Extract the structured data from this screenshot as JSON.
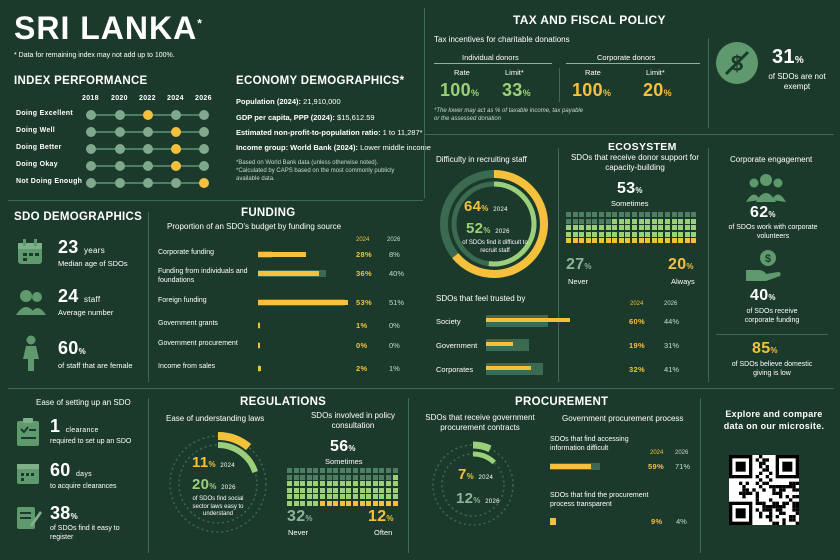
{
  "title": "SRI LANKA",
  "title_star": "*",
  "note": "* Data for remaining index may not add up to 100%.",
  "colors": {
    "bg": "#1c3a2b",
    "accent": "#f5c03c",
    "green": "#9ccf7a",
    "muted": "#7fa88c"
  },
  "index": {
    "heading": "INDEX PERFORMANCE",
    "years": [
      "2018",
      "2020",
      "2022",
      "2024",
      "2026"
    ],
    "rows": [
      "Doing Excellent",
      "Doing Well",
      "Doing Better",
      "Doing Okay",
      "Not Doing Enough"
    ],
    "highlight": [
      [
        2,
        0
      ],
      [
        3,
        1
      ],
      [
        3,
        2
      ],
      [
        3,
        3
      ],
      [
        4,
        4
      ]
    ]
  },
  "economy": {
    "heading": "ECONOMY DEMOGRAPHICS*",
    "pop_label": "Population (2024):",
    "pop_value": "21,910,000",
    "gdp_label": "GDP per capita, PPP (2024):",
    "gdp_value": "$15,612.59",
    "ratio_label": "Estimated non-profit-to-population ratio:",
    "ratio_value": "1 to 11,287*",
    "income_label": "Income group: World Bank (2024):",
    "income_value": "Lower middle income",
    "note1": "*Based on World Bank data (unless otherwise noted).",
    "note2": "*Calculated by CAPS based on the most commonly publicly available data."
  },
  "tax": {
    "heading": "TAX AND FISCAL POLICY",
    "sub": "Tax incentives for charitable donations",
    "indiv": "Individual donors",
    "corp": "Corporate donors",
    "rate": "Rate",
    "limit": "Limit*",
    "indiv_rate": "100",
    "indiv_limit": "33",
    "corp_rate": "100",
    "corp_limit": "20",
    "pct": "%",
    "note": "*The lower may act as % of taxable income, tax payable or the assessed donation",
    "exempt_value": "31",
    "exempt_label": "of SDOs are not exempt"
  },
  "ecosystem": {
    "heading": "ECOSYSTEM",
    "recruit_title": "Difficulty in recruiting staff",
    "recruit_2024": "64",
    "recruit_2026": "52",
    "recruit_pct": "%",
    "recruit_note": "of SDOs find it difficult to recruit staff",
    "support_title": "SDOs that receive donor support for capacity-building",
    "sometimes_value": "53",
    "sometimes_label": "Sometimes",
    "never_value": "27",
    "never_label": "Never",
    "always_value": "20",
    "always_label": "Always",
    "trusted_title": "SDOs that feel trusted by",
    "trusted_rows": [
      {
        "label": "Society",
        "v2024": "60%",
        "v2026": "44%",
        "f2024": 0.6,
        "f2026": 0.44
      },
      {
        "label": "Government",
        "v2024": "19%",
        "v2026": "31%",
        "f2024": 0.19,
        "f2026": 0.31
      },
      {
        "label": "Corporates",
        "v2024": "32%",
        "v2026": "41%",
        "f2024": 0.32,
        "f2026": 0.41
      }
    ],
    "corp_title": "Corporate engagement",
    "volunteer_value": "62",
    "volunteer_label": "of SDOs work with corporate volunteers",
    "funding_value": "40",
    "funding_label": "of SDOs receive corporate funding",
    "domestic_value": "85",
    "domestic_label": "of SDOs believe domestic giving is low"
  },
  "sdo": {
    "heading": "SDO DEMOGRAPHICS",
    "age_value": "23",
    "age_unit": "years",
    "age_label": "Median age of SDOs",
    "staff_value": "24",
    "staff_unit": "staff",
    "staff_label": "Average number",
    "female_value": "60",
    "female_label": "of staff that are female"
  },
  "funding": {
    "heading": "FUNDING",
    "sub": "Proportion of an SDO's budget by funding source",
    "y2024": "2024",
    "y2026": "2026",
    "rows": [
      {
        "label": "Corporate funding",
        "v2024": "28%",
        "v2026": "8%",
        "f2024": 0.28,
        "f2026": 0.08
      },
      {
        "label": "Funding from individuals and foundations",
        "v2024": "36%",
        "v2026": "40%",
        "f2024": 0.36,
        "f2026": 0.4
      },
      {
        "label": "Foreign funding",
        "v2024": "53%",
        "v2026": "51%",
        "f2024": 0.53,
        "f2026": 0.51
      },
      {
        "label": "Government grants",
        "v2024": "1%",
        "v2026": "0%",
        "f2024": 0.01,
        "f2026": 0.0
      },
      {
        "label": "Government procurement",
        "v2024": "0%",
        "v2026": "0%",
        "f2024": 0.0,
        "f2026": 0.0
      },
      {
        "label": "Income from sales",
        "v2024": "2%",
        "v2026": "1%",
        "f2024": 0.02,
        "f2026": 0.01
      }
    ]
  },
  "ease": {
    "heading": "Ease of setting up an SDO",
    "clearance_value": "1",
    "clearance_unit": "clearance",
    "clearance_label": "required to set up an SDO",
    "days_value": "60",
    "days_unit": "days",
    "days_label": "to acquire clearances",
    "easy_value": "38",
    "easy_label": "of SDOs find it easy to register"
  },
  "regulations": {
    "heading": "REGULATIONS",
    "laws_title": "Ease of understanding laws",
    "laws_2024": "11",
    "laws_2026": "20",
    "laws_note": "of SDOs find social sector laws easy to understand",
    "policy_title": "SDOs involved in policy consultation",
    "sometimes_value": "56",
    "sometimes_label": "Sometimes",
    "never_value": "32",
    "never_label": "Never",
    "often_value": "12",
    "often_label": "Often"
  },
  "procurement": {
    "heading": "PROCUREMENT",
    "contracts_title": "SDOs that receive government procurement contracts",
    "contracts_2024": "7",
    "contracts_2026": "12",
    "process_title": "Government procurement process",
    "access_label": "SDOs that find accessing information difficult",
    "access_2024": "59%",
    "access_2026": "71%",
    "access_f": 0.59,
    "access_f2026": 0.71,
    "transparent_label": "SDOs that find the procurement process transparent",
    "transparent_2024": "9%",
    "transparent_2026": "4%",
    "transparent_f": 0.09,
    "transparent_f2026": 0.04,
    "y2024": "2024",
    "y2026": "2026"
  },
  "explore": {
    "text": "Explore and compare data on our microsite."
  },
  "labels": {
    "y2024": "2024",
    "y2026": "2026",
    "pct": "%"
  }
}
